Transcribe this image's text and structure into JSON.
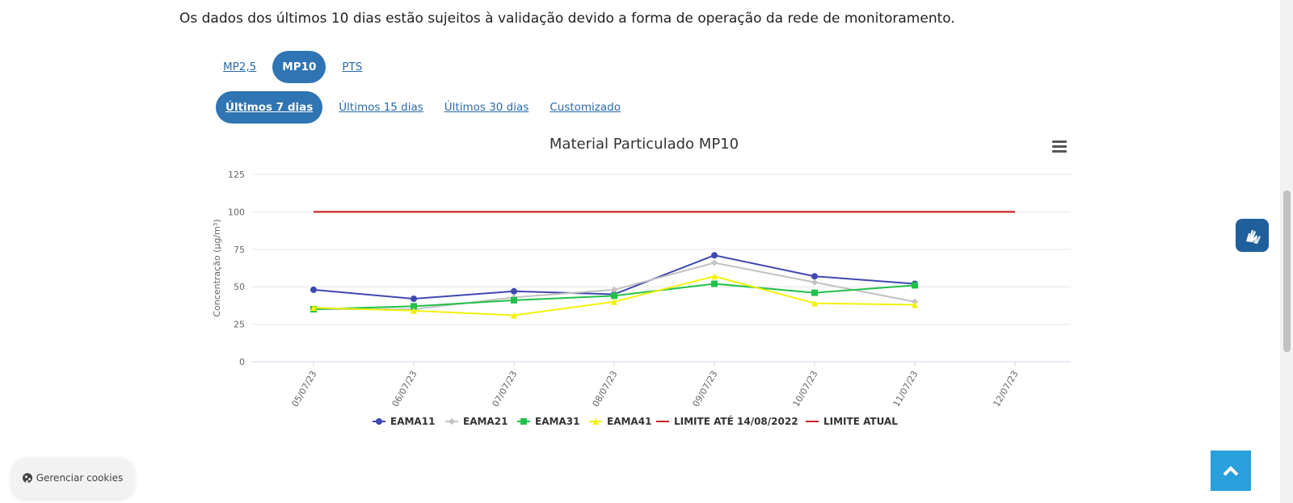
{
  "notice": "Os dados dos últimos 10 dias estão sujeitos à validação devido a forma de operação da rede de monitoramento.",
  "pollutant_tabs": [
    {
      "label": "MP2,5",
      "active": false
    },
    {
      "label": "MP10",
      "active": true
    },
    {
      "label": "PTS",
      "active": false
    }
  ],
  "period_tabs": [
    {
      "label": "Últimos 7 dias",
      "active": true
    },
    {
      "label": "Últimos 15 dias",
      "active": false
    },
    {
      "label": "Últimos 30 dias",
      "active": false
    },
    {
      "label": "Customizado",
      "active": false
    }
  ],
  "cookie_button": "Gerenciar cookies",
  "chart_data": {
    "type": "line",
    "title": "Material Particulado MP10",
    "ylabel": "Concentração (µg/m³)",
    "xlabel": "",
    "ylim": [
      0,
      125
    ],
    "yticks": [
      0,
      25,
      50,
      75,
      100,
      125
    ],
    "categories": [
      "05/07/23",
      "06/07/23",
      "07/07/23",
      "08/07/23",
      "09/07/23",
      "10/07/23",
      "11/07/23",
      "12/07/23"
    ],
    "grid": true,
    "legend": "bottom-center",
    "series": [
      {
        "name": "EAMA11",
        "color": "#3f48b0",
        "marker": "circle",
        "values": [
          48,
          42,
          47,
          45,
          71,
          57,
          52,
          null
        ]
      },
      {
        "name": "EAMA21",
        "color": "#c2c2c2",
        "marker": "diamond",
        "values": [
          35,
          35,
          43,
          48,
          66,
          53,
          40,
          null
        ]
      },
      {
        "name": "EAMA31",
        "color": "#22c04a",
        "marker": "square",
        "values": [
          35,
          37,
          41,
          44,
          52,
          46,
          51,
          null
        ]
      },
      {
        "name": "EAMA41",
        "color": "#f2f20a",
        "marker": "triangle",
        "values": [
          36,
          34,
          31,
          40,
          57,
          39,
          38,
          null
        ]
      },
      {
        "name": "LIMITE ATÉ 14/08/2022",
        "color": "#cc1f1f",
        "marker": "none",
        "values": [
          100,
          100,
          100,
          100,
          100,
          100,
          100,
          100
        ]
      },
      {
        "name": "LIMITE ATUAL",
        "color": "#cc1f1f",
        "marker": "none",
        "values": [
          100,
          100,
          100,
          100,
          100,
          100,
          100,
          100
        ]
      }
    ]
  }
}
